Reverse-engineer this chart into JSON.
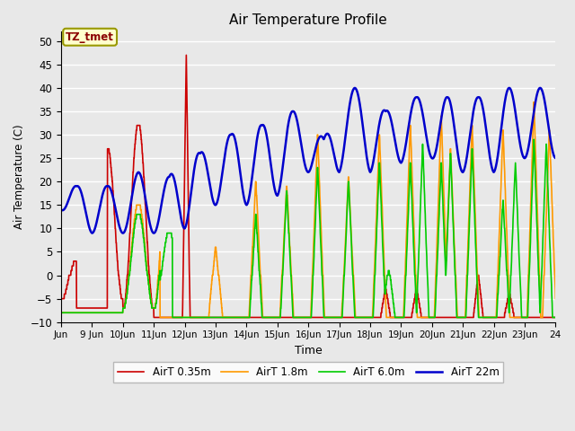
{
  "title": "Air Temperature Profile",
  "xlabel": "Time",
  "ylabel": "Air Temperature (C)",
  "ylim": [
    -10,
    52
  ],
  "yticks": [
    -10,
    -5,
    0,
    5,
    10,
    15,
    20,
    25,
    30,
    35,
    40,
    45,
    50
  ],
  "background_color": "#e8e8e8",
  "annotation_text": "TZ_tmet",
  "annotation_color": "#8B0000",
  "annotation_bg": "#ffffcc",
  "annotation_border": "#999900",
  "legend_entries": [
    "AirT 0.35m",
    "AirT 1.8m",
    "AirT 6.0m",
    "AirT 22m"
  ],
  "line_colors": [
    "#cc0000",
    "#ff9900",
    "#00cc00",
    "#0000cc"
  ],
  "xtick_labels": [
    "Jun",
    "9 Jun",
    "10Jun",
    "11Jun",
    "12Jun",
    "13Jun",
    "14Jun",
    "15Jun",
    "16Jun",
    "17Jun",
    "18Jun",
    "19Jun",
    "20Jun",
    "21Jun",
    "22Jun",
    "23Jun",
    "24"
  ],
  "xtick_positions": [
    8,
    9,
    10,
    11,
    12,
    13,
    14,
    15,
    16,
    17,
    18,
    19,
    20,
    21,
    22,
    23,
    24
  ],
  "figsize": [
    6.4,
    4.8
  ],
  "dpi": 100
}
